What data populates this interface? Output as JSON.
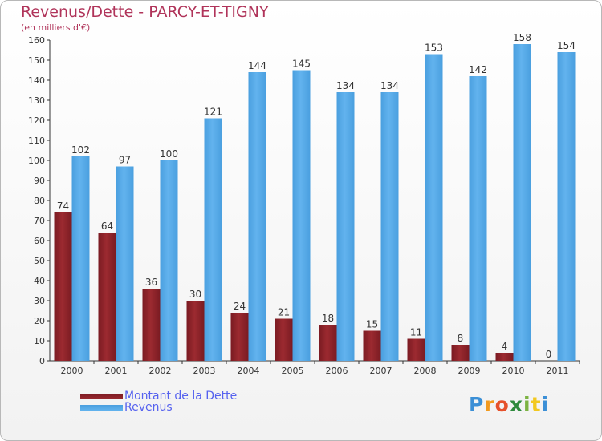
{
  "header": {
    "title": "Revenus/Dette - PARCY-ET-TIGNY",
    "subtitle": "(en milliers d'€)"
  },
  "colors": {
    "title": "#b0345a",
    "debt": "#7a1b22",
    "debt_light": "#9c2a30",
    "revenue": "#4a9fdf",
    "revenue_light": "#62b3ee",
    "legend_text": "#5561ef",
    "axis": "#333333"
  },
  "chart_data": {
    "type": "bar",
    "title": "Revenus/Dette - PARCY-ET-TIGNY",
    "ylabel": "(en milliers d'€)",
    "xlabel": "",
    "categories": [
      "2000",
      "2001",
      "2002",
      "2003",
      "2004",
      "2005",
      "2006",
      "2007",
      "2008",
      "2009",
      "2010",
      "2011"
    ],
    "ylim": [
      0,
      160
    ],
    "yticks": [
      0,
      10,
      20,
      30,
      40,
      50,
      60,
      70,
      80,
      90,
      100,
      110,
      120,
      130,
      140,
      150,
      160
    ],
    "grid": false,
    "legend_position": "bottom-left",
    "series": [
      {
        "name": "Montant de la Dette",
        "values": [
          74,
          64,
          36,
          30,
          24,
          21,
          18,
          15,
          11,
          8,
          4,
          0
        ]
      },
      {
        "name": "Revenus",
        "values": [
          102,
          97,
          100,
          121,
          144,
          145,
          134,
          134,
          153,
          142,
          158,
          154
        ]
      }
    ]
  },
  "legend": {
    "items": [
      {
        "label": "Montant de la Dette"
      },
      {
        "label": "Revenus"
      }
    ]
  },
  "logo": {
    "letters": [
      "P",
      "r",
      "o",
      "x",
      "i",
      "t",
      "i"
    ],
    "colors": [
      "#3b8fd6",
      "#f29a1f",
      "#e6512b",
      "#2e8a3d",
      "#7cb342",
      "#f2c81f",
      "#3b8fd6"
    ]
  }
}
